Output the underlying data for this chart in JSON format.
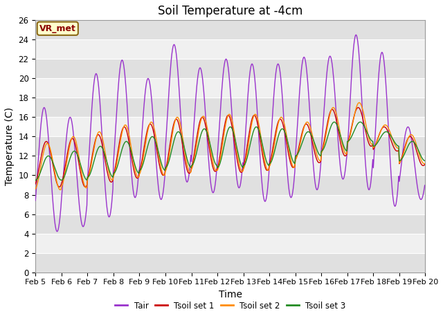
{
  "title": "Soil Temperature at -4cm",
  "xlabel": "Time",
  "ylabel": "Temperature (C)",
  "ylim": [
    0,
    26
  ],
  "station_label": "VR_met",
  "legend_entries": [
    "Tair",
    "Tsoil set 1",
    "Tsoil set 2",
    "Tsoil set 3"
  ],
  "colors": {
    "Tair": "#9932CC",
    "Tsoil set 1": "#CC0000",
    "Tsoil set 2": "#FF8C00",
    "Tsoil set 3": "#228B22"
  },
  "bg_color": "#f0f0f0",
  "strip_color_light": "#f0f0f0",
  "strip_color_dark": "#e0e0e0",
  "num_days": 15,
  "points_per_day": 48,
  "tair_peaks": [
    17.0,
    16.0,
    20.5,
    21.9,
    20.0,
    23.5,
    21.1,
    22.0,
    21.5,
    21.5,
    22.2,
    22.3,
    24.5,
    22.7,
    15.0
  ],
  "tair_troughs": [
    4.2,
    4.7,
    5.7,
    7.7,
    7.5,
    9.3,
    8.2,
    8.7,
    7.3,
    7.7,
    8.5,
    9.6,
    8.5,
    6.8,
    7.5
  ],
  "ts1_peaks": [
    13.5,
    13.8,
    14.2,
    15.0,
    15.3,
    15.8,
    16.0,
    16.2,
    16.2,
    15.8,
    15.3,
    16.8,
    17.0,
    15.0,
    14.0
  ],
  "ts1_troughs": [
    8.8,
    8.8,
    9.3,
    9.7,
    10.0,
    10.2,
    10.4,
    10.3,
    10.5,
    10.8,
    11.3,
    12.0,
    13.0,
    12.5,
    11.0
  ],
  "ts2_peaks": [
    13.3,
    14.0,
    14.5,
    15.2,
    15.5,
    16.0,
    16.1,
    16.3,
    16.3,
    16.0,
    15.5,
    17.0,
    17.5,
    15.2,
    14.2
  ],
  "ts2_troughs": [
    8.5,
    8.7,
    9.5,
    9.8,
    10.0,
    10.3,
    10.5,
    10.4,
    10.5,
    10.8,
    11.5,
    12.2,
    13.2,
    12.8,
    11.2
  ],
  "ts3_peaks": [
    12.0,
    12.5,
    13.0,
    13.5,
    14.0,
    14.5,
    14.8,
    15.0,
    15.0,
    14.8,
    14.5,
    15.5,
    15.5,
    14.5,
    13.5
  ],
  "ts3_troughs": [
    9.5,
    9.5,
    9.8,
    10.2,
    10.5,
    10.8,
    11.0,
    10.8,
    11.0,
    11.2,
    12.0,
    12.5,
    13.5,
    13.0,
    11.5
  ],
  "tair_peak_hour": 14,
  "tsoil_peak_hour": 16,
  "title_fontsize": 12,
  "label_fontsize": 10,
  "tick_fontsize": 8.5
}
